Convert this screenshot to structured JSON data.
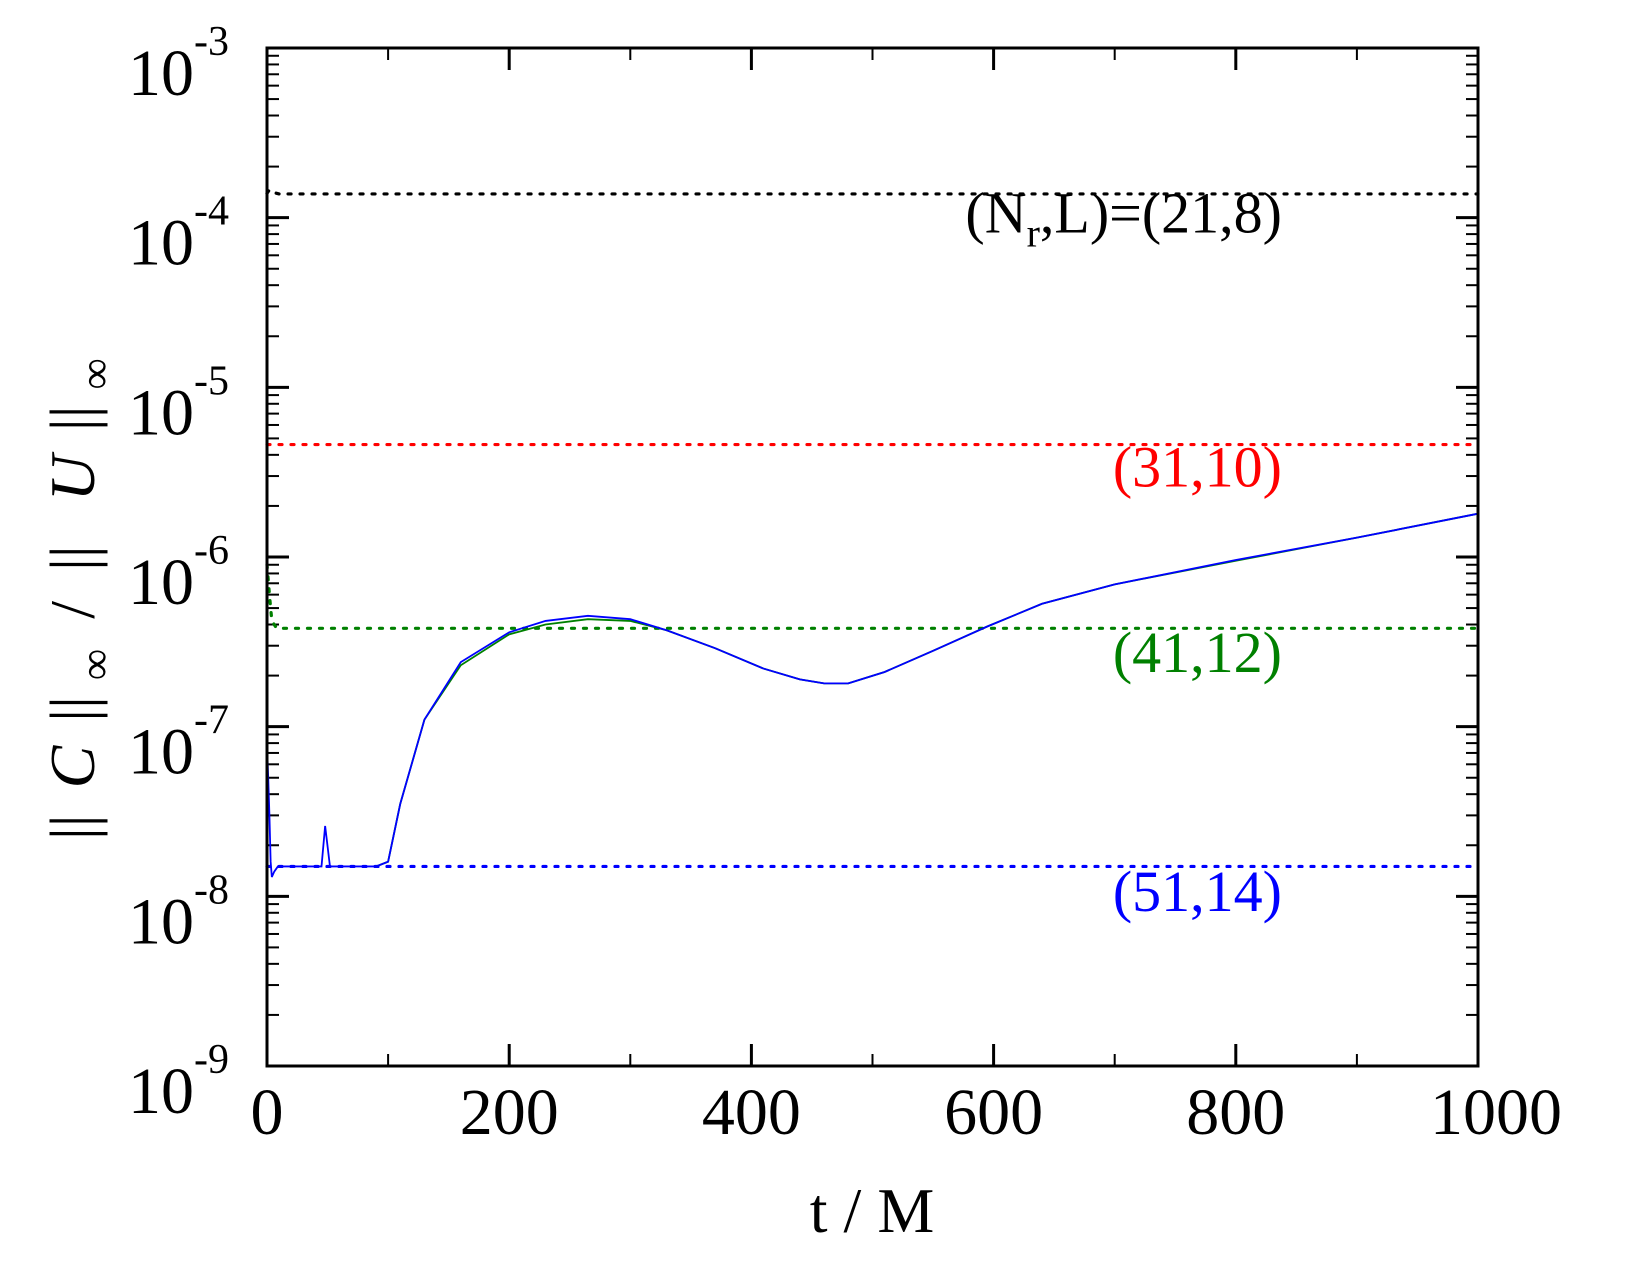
{
  "chart_data": {
    "type": "line",
    "xlabel": "t / M",
    "ylabel": {
      "norm_open": "||",
      "num_symbol": "C",
      "norm_close": "||",
      "sub": "∞",
      "slash": "/",
      "den_open": "||",
      "den_symbol": "U",
      "den_close": "||",
      "den_sub": "∞"
    },
    "xlim": [
      0,
      1000
    ],
    "ylim": [
      1e-09,
      0.001
    ],
    "yscale": "log",
    "grid": false,
    "x_ticks": [
      {
        "value": 0,
        "label": "0"
      },
      {
        "value": 200,
        "label": "200"
      },
      {
        "value": 400,
        "label": "400"
      },
      {
        "value": 600,
        "label": "600"
      },
      {
        "value": 800,
        "label": "800"
      },
      {
        "value": 1000,
        "label": "1000"
      }
    ],
    "y_ticks": [
      {
        "value": 1e-09,
        "base": "10",
        "exp": "-9"
      },
      {
        "value": 1e-08,
        "base": "10",
        "exp": "-8"
      },
      {
        "value": 1e-07,
        "base": "10",
        "exp": "-7"
      },
      {
        "value": 1e-06,
        "base": "10",
        "exp": "-6"
      },
      {
        "value": 1e-05,
        "base": "10",
        "exp": "-5"
      },
      {
        "value": 0.0001,
        "base": "10",
        "exp": "-4"
      },
      {
        "value": 0.001,
        "base": "10",
        "exp": "-3"
      }
    ],
    "series": [
      {
        "label": "(N",
        "label_sub": "r",
        "label_rest": ",L)=(21,8)",
        "color": "#000000",
        "style": "dotted",
        "label_at": [
          890,
          8.2e-05
        ],
        "points": [
          [
            0,
            0.000139
          ],
          [
            2,
            0.000146
          ],
          [
            5,
            0.000141
          ],
          [
            10,
            0.000138
          ],
          [
            1000,
            0.000138
          ]
        ]
      },
      {
        "label": "(31,10)",
        "color": "#ff0000",
        "style": "dotted",
        "label_at": [
          890,
          2.6e-06
        ],
        "points": [
          [
            0,
            4.6e-06
          ],
          [
            1000,
            4.6e-06
          ]
        ]
      },
      {
        "label": "(41,12)",
        "color": "#008000",
        "style": "dotted",
        "label_at": [
          890,
          2.1e-07
        ],
        "points": [
          [
            0,
            9e-07
          ],
          [
            2,
            6e-07
          ],
          [
            4,
            4.2e-07
          ],
          [
            8,
            3.8e-07
          ],
          [
            1000,
            3.8e-07
          ]
        ]
      },
      {
        "label": "(51,14)",
        "color": "#0000ff",
        "style": "dotted",
        "label_at": [
          890,
          8.2e-09
        ],
        "points": [
          [
            0,
            1.5e-08
          ],
          [
            1000,
            1.5e-08
          ]
        ]
      },
      {
        "label": "",
        "color": "#008000",
        "style": "solid",
        "points": [
          [
            90,
            1.5e-08
          ],
          [
            100,
            1.6e-08
          ],
          [
            110,
            3.5e-08
          ],
          [
            130,
            1.1e-07
          ],
          [
            160,
            2.3e-07
          ],
          [
            200,
            3.5e-07
          ],
          [
            230,
            4e-07
          ],
          [
            265,
            4.3e-07
          ],
          [
            300,
            4.2e-07
          ],
          [
            330,
            3.7e-07
          ],
          [
            370,
            2.9e-07
          ],
          [
            410,
            2.2e-07
          ],
          [
            440,
            1.9e-07
          ],
          [
            460,
            1.8e-07
          ],
          [
            480,
            1.8e-07
          ],
          [
            510,
            2.1e-07
          ],
          [
            550,
            2.8e-07
          ],
          [
            595,
            3.9e-07
          ],
          [
            640,
            5.3e-07
          ],
          [
            700,
            6.9e-07
          ],
          [
            800,
            9.5e-07
          ],
          [
            900,
            1.3e-06
          ],
          [
            1000,
            1.8e-06
          ]
        ]
      },
      {
        "label": "",
        "color": "#0000ff",
        "style": "solid",
        "points": [
          [
            0,
            8e-08
          ],
          [
            1,
            5e-08
          ],
          [
            2,
            3e-08
          ],
          [
            3,
            1.6e-08
          ],
          [
            4,
            1.3e-08
          ],
          [
            6,
            1.4e-08
          ],
          [
            9,
            1.5e-08
          ],
          [
            45,
            1.5e-08
          ],
          [
            48,
            2.6e-08
          ],
          [
            52,
            1.5e-08
          ],
          [
            90,
            1.5e-08
          ],
          [
            100,
            1.6e-08
          ],
          [
            110,
            3.5e-08
          ],
          [
            130,
            1.1e-07
          ],
          [
            160,
            2.4e-07
          ],
          [
            200,
            3.6e-07
          ],
          [
            230,
            4.2e-07
          ],
          [
            265,
            4.5e-07
          ],
          [
            300,
            4.3e-07
          ],
          [
            330,
            3.7e-07
          ],
          [
            370,
            2.9e-07
          ],
          [
            410,
            2.2e-07
          ],
          [
            440,
            1.9e-07
          ],
          [
            460,
            1.8e-07
          ],
          [
            480,
            1.8e-07
          ],
          [
            510,
            2.1e-07
          ],
          [
            550,
            2.8e-07
          ],
          [
            595,
            3.9e-07
          ],
          [
            640,
            5.3e-07
          ],
          [
            700,
            6.9e-07
          ],
          [
            800,
            9.6e-07
          ],
          [
            900,
            1.3e-06
          ],
          [
            1000,
            1.8e-06
          ]
        ]
      }
    ]
  }
}
